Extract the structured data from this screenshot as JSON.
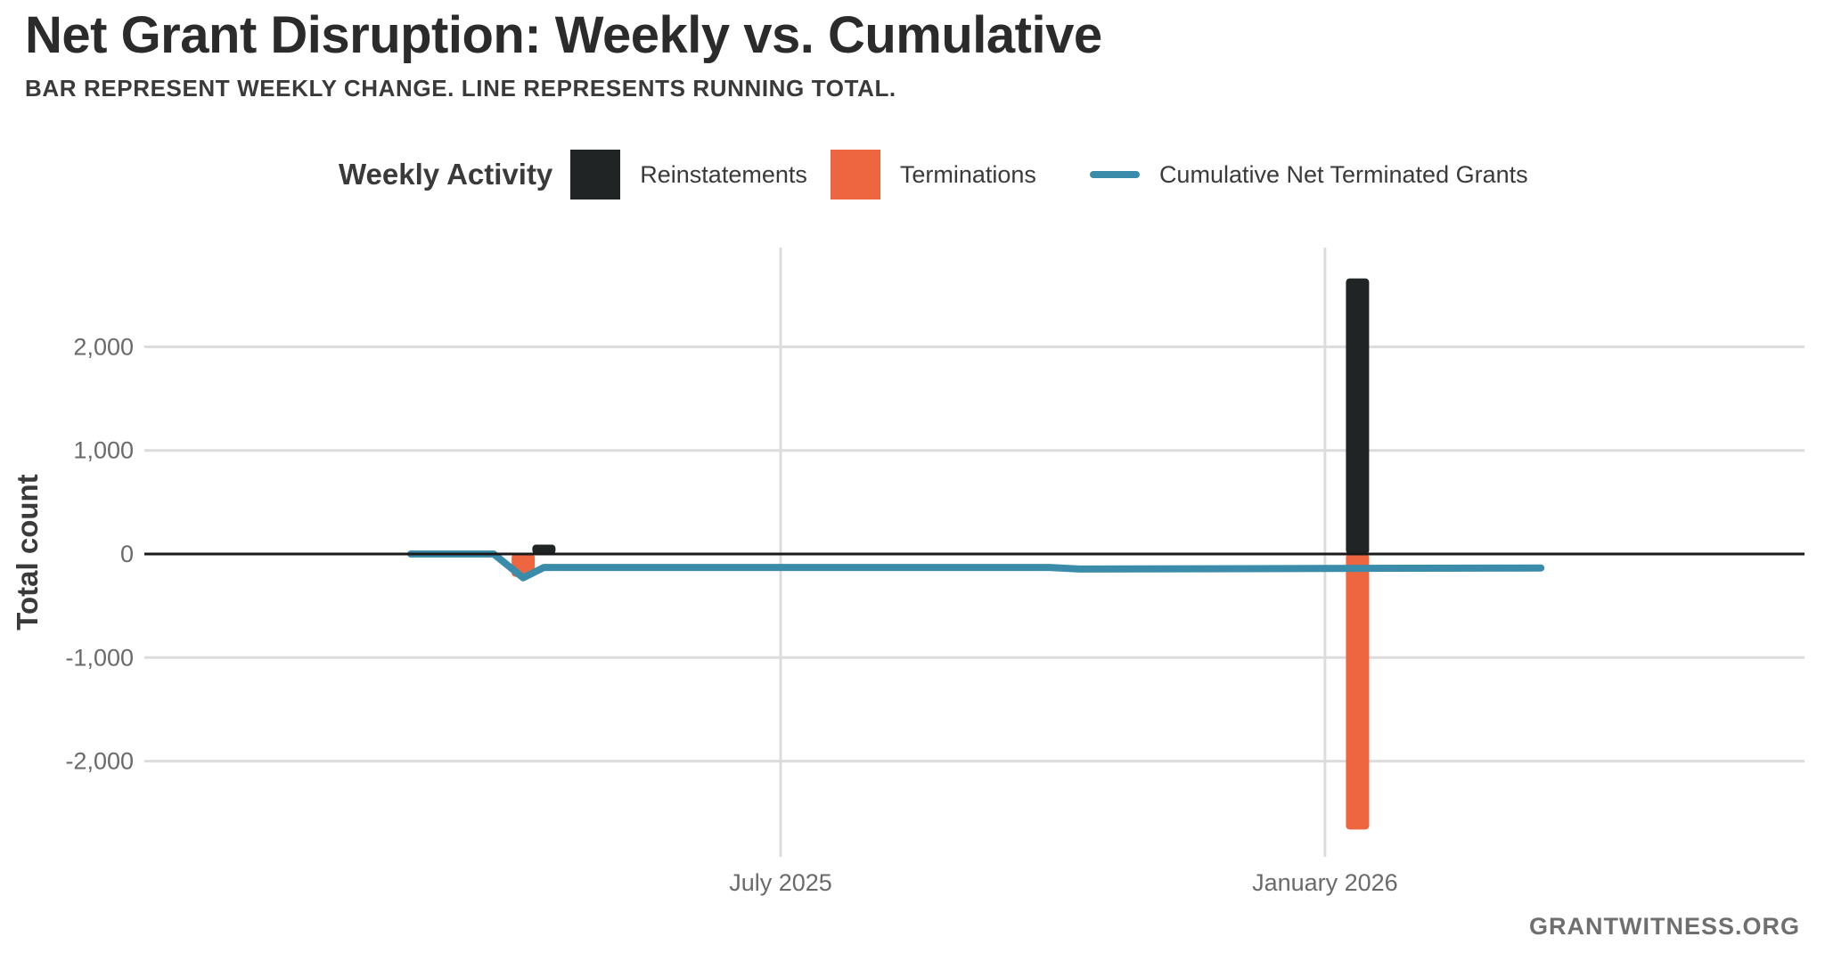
{
  "header": {
    "title": "Net Grant Disruption: Weekly vs. Cumulative",
    "subtitle": "BAR REPRESENT WEEKLY CHANGE. LINE REPRESENTS RUNNING TOTAL."
  },
  "legend": {
    "title": "Weekly Activity",
    "items": [
      {
        "label": "Reinstatements",
        "color": "#212425",
        "kind": "swatch"
      },
      {
        "label": "Terminations",
        "color": "#ee6640",
        "kind": "swatch"
      },
      {
        "label": "Cumulative Net Terminated Grants",
        "color": "#3b8bab",
        "kind": "line"
      }
    ]
  },
  "source": "GRANTWITNESS.ORG",
  "chart_data": {
    "type": "bar",
    "ylabel": "Total count",
    "xlabel": "",
    "ylim": [
      -2950,
      2950
    ],
    "yticks": [
      {
        "value": 2000,
        "label": "2,000"
      },
      {
        "value": 1000,
        "label": "1,000"
      },
      {
        "value": 0,
        "label": "0"
      },
      {
        "value": -1000,
        "label": "-1,000"
      },
      {
        "value": -2000,
        "label": "-2,000"
      }
    ],
    "xlim": [
      "2025-02-01",
      "2026-04-01"
    ],
    "xticks": [
      {
        "date": "2025-07-01",
        "label": "July 2025"
      },
      {
        "date": "2026-01-01",
        "label": "January 2026"
      }
    ],
    "grid": true,
    "series": [
      {
        "name": "Reinstatements",
        "color": "#212425",
        "points": [
          {
            "x": "2025-04-12",
            "y": 90
          },
          {
            "x": "2026-01-12",
            "y": 2660
          }
        ]
      },
      {
        "name": "Terminations",
        "color": "#ee6640",
        "points": [
          {
            "x": "2025-04-05",
            "y": -220
          },
          {
            "x": "2026-01-12",
            "y": -2660
          }
        ]
      },
      {
        "name": "Cumulative Net Terminated Grants",
        "color": "#3b8bab",
        "points": [
          {
            "x": "2025-02-26",
            "y": 0
          },
          {
            "x": "2025-03-26",
            "y": 0
          },
          {
            "x": "2025-04-05",
            "y": -230
          },
          {
            "x": "2025-04-12",
            "y": -130
          },
          {
            "x": "2025-09-30",
            "y": -130
          },
          {
            "x": "2025-10-10",
            "y": -145
          },
          {
            "x": "2026-03-15",
            "y": -135
          }
        ]
      }
    ]
  }
}
